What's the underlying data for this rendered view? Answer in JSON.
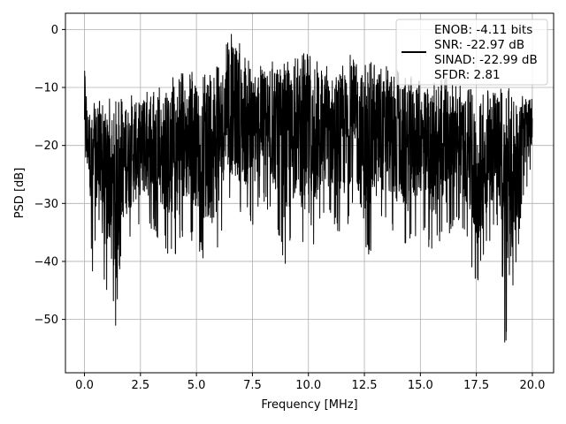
{
  "chart_data": {
    "type": "line",
    "title": "",
    "xlabel": "Frequency [MHz]",
    "ylabel": "PSD [dB]",
    "xlim": [
      -0.85,
      20.95
    ],
    "ylim": [
      -59.2,
      2.8
    ],
    "xticks": [
      0.0,
      2.5,
      5.0,
      7.5,
      10.0,
      12.5,
      15.0,
      17.5,
      20.0
    ],
    "xtick_labels": [
      "0.0",
      "2.5",
      "5.0",
      "7.5",
      "10.0",
      "12.5",
      "15.0",
      "17.5",
      "20.0"
    ],
    "yticks": [
      0,
      -10,
      -20,
      -30,
      -40,
      -50
    ],
    "ytick_labels": [
      "0",
      "−10",
      "−20",
      "−30",
      "−40",
      "−50"
    ],
    "grid": true,
    "legend_placement": "top-right",
    "legend_entries": [
      "ENOB: -4.11 bits",
      "SNR: -22.97 dB",
      "SINAD: -22.99 dB",
      "SFDR: 2.81"
    ],
    "series_color": "#000000",
    "series": [
      {
        "x": [
          0.0,
          0.02,
          0.05,
          0.08,
          0.12,
          0.18,
          0.25,
          0.35,
          0.5,
          0.7,
          1.0,
          1.2,
          1.4,
          1.6,
          2.0,
          2.5,
          3.0,
          3.5,
          4.0,
          4.5,
          5.0,
          5.5,
          6.0,
          6.3,
          6.6,
          7.0,
          7.5,
          8.0,
          8.5,
          9.0,
          9.5,
          10.0,
          10.5,
          11.0,
          11.5,
          12.0,
          12.5,
          13.0,
          13.5,
          14.0,
          14.5,
          15.0,
          15.5,
          16.0,
          16.5,
          17.0,
          17.5,
          18.0,
          18.5,
          18.7,
          19.0,
          19.5,
          20.0
        ],
        "y_max": [
          -8,
          -4.3,
          -9,
          -10,
          -12,
          -14,
          -13,
          -12,
          -12,
          -12,
          -11,
          -11,
          -12,
          -12,
          -11,
          -11,
          -10,
          -10,
          -8,
          -7,
          -7,
          -8,
          -5,
          -3,
          0,
          -3,
          -6,
          -6,
          -5,
          -5,
          -5,
          -3,
          -6,
          -6,
          -5,
          -4,
          -4,
          -6,
          -6,
          -7,
          -8,
          -8,
          -9,
          -8,
          -9,
          -10,
          -10,
          -9,
          -10,
          -10,
          -10,
          -11,
          -12
        ],
        "y_min": [
          -23,
          -26,
          -30,
          -32,
          -30,
          -28,
          -33,
          -44,
          -36,
          -40,
          -47,
          -42,
          -53.5,
          -40,
          -37,
          -34,
          -35,
          -37,
          -41,
          -36,
          -37,
          -42,
          -38,
          -30,
          -32,
          -33,
          -34,
          -30,
          -34,
          -41,
          -34,
          -43.6,
          -35,
          -33,
          -37,
          -31,
          -41,
          -36,
          -34,
          -37,
          -38,
          -34,
          -39,
          -37,
          -34,
          -35,
          -46,
          -37,
          -34,
          -56.5,
          -50,
          -33,
          -23
        ]
      }
    ]
  }
}
